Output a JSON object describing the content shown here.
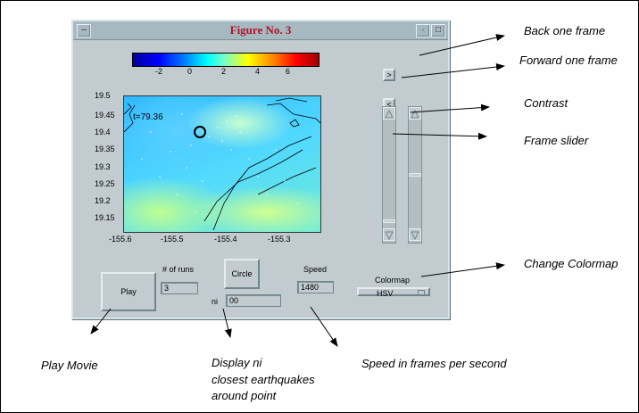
{
  "window": {
    "title": "Figure No. 3"
  },
  "colorbar": {
    "ticks": [
      "-2",
      "0",
      "2",
      "4",
      "6"
    ]
  },
  "plot": {
    "label": "t=79.36",
    "y_ticks": [
      "19.5",
      "19.45",
      "19.4",
      "19.35",
      "19.3",
      "19.25",
      "19.2",
      "19.15"
    ],
    "x_ticks": [
      "-155.6",
      "-155.5",
      "-155.4",
      "-155.3"
    ]
  },
  "controls": {
    "back_label": ">",
    "forward_label": "<",
    "play_label": "Play",
    "runs_label": "# of runs",
    "runs_value": "3",
    "circle_label": "Circle",
    "ni_label": "ni",
    "ni_value": "00",
    "speed_label": "Speed",
    "speed_value": "1480",
    "colormap_label": "Colormap",
    "colormap_value": "HSV"
  },
  "annotations": {
    "back_one_frame": "Back one frame",
    "forward_one_frame": "Forward one frame",
    "contrast": "Contrast",
    "frame_slider": "Frame slider",
    "change_colormap": "Change Colormap",
    "play_movie": "Play Movie",
    "display_ni_line1": "Display ni",
    "display_ni_line2": "closest earthquakes",
    "display_ni_line3": "around point",
    "speed_fps": "Speed in frames per second"
  }
}
